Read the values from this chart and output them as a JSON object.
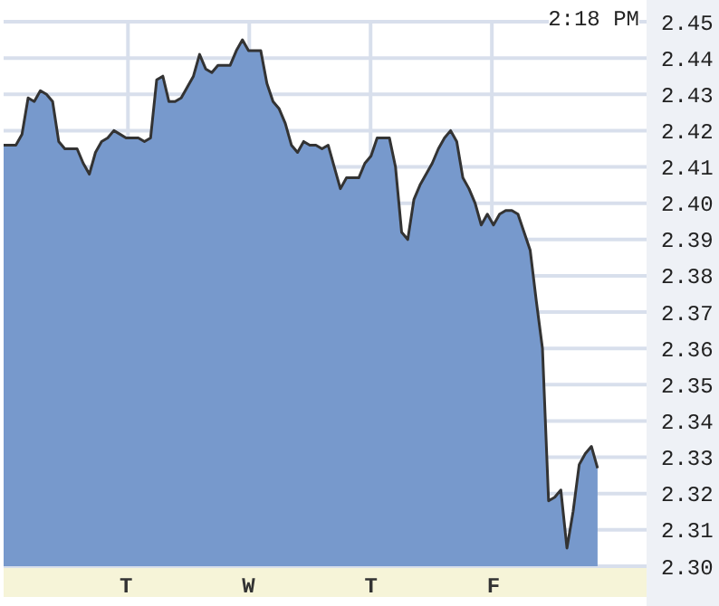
{
  "chart_data": {
    "type": "area",
    "annotations": [
      "2:18 PM"
    ],
    "categories": [
      null,
      null,
      null,
      null,
      null,
      null,
      null,
      null,
      null,
      null,
      null,
      null,
      null,
      null,
      null,
      null,
      null,
      null,
      null,
      null,
      "T",
      null,
      null,
      null,
      null,
      null,
      null,
      null,
      null,
      null,
      null,
      null,
      null,
      null,
      null,
      null,
      null,
      null,
      null,
      null,
      "W",
      null,
      null,
      null,
      null,
      null,
      null,
      null,
      null,
      null,
      null,
      null,
      null,
      null,
      null,
      null,
      null,
      null,
      null,
      null,
      "T",
      null,
      null,
      null,
      null,
      null,
      null,
      null,
      null,
      null,
      null,
      null,
      null,
      null,
      null,
      null,
      null,
      null,
      null,
      null,
      "F",
      null,
      null,
      null,
      null,
      null,
      null,
      null,
      null,
      null,
      null,
      null,
      null,
      null,
      null,
      null,
      null,
      null,
      null,
      null,
      null,
      null,
      null,
      null,
      null,
      null
    ],
    "values": [
      2.416,
      2.416,
      2.416,
      2.419,
      2.429,
      2.428,
      2.431,
      2.43,
      2.428,
      2.417,
      2.415,
      2.415,
      2.415,
      2.411,
      2.408,
      2.414,
      2.417,
      2.418,
      2.42,
      2.419,
      2.418,
      2.418,
      2.418,
      2.417,
      2.418,
      2.434,
      2.435,
      2.428,
      2.428,
      2.429,
      2.432,
      2.435,
      2.441,
      2.437,
      2.436,
      2.438,
      2.438,
      2.438,
      2.442,
      2.445,
      2.442,
      2.442,
      2.442,
      2.433,
      2.428,
      2.426,
      2.422,
      2.416,
      2.414,
      2.417,
      2.416,
      2.416,
      2.415,
      2.416,
      2.41,
      2.404,
      2.407,
      2.407,
      2.407,
      2.411,
      2.413,
      2.418,
      2.418,
      2.418,
      2.41,
      2.392,
      2.39,
      2.401,
      2.405,
      2.408,
      2.411,
      2.415,
      2.418,
      2.42,
      2.417,
      2.407,
      2.404,
      2.4,
      2.394,
      2.397,
      2.394,
      2.397,
      2.398,
      2.398,
      2.397,
      2.392,
      2.387,
      2.373,
      2.36,
      2.318,
      2.319,
      2.321,
      2.305,
      2.315,
      2.328,
      2.331,
      2.333,
      2.327,
      null,
      null,
      null,
      null,
      null,
      null,
      null,
      null
    ],
    "color": "#7799cc",
    "ylim": [
      2.3,
      2.45
    ],
    "yticks": [
      {
        "value": 2.3,
        "label": "2.30"
      },
      2.31,
      2.32,
      2.33,
      2.34,
      2.35,
      2.36,
      2.37,
      2.38,
      2.39,
      {
        "value": 2.4,
        "label": "2.40"
      },
      2.41,
      2.42,
      2.43,
      2.44,
      2.45
    ],
    "grid": true
  }
}
